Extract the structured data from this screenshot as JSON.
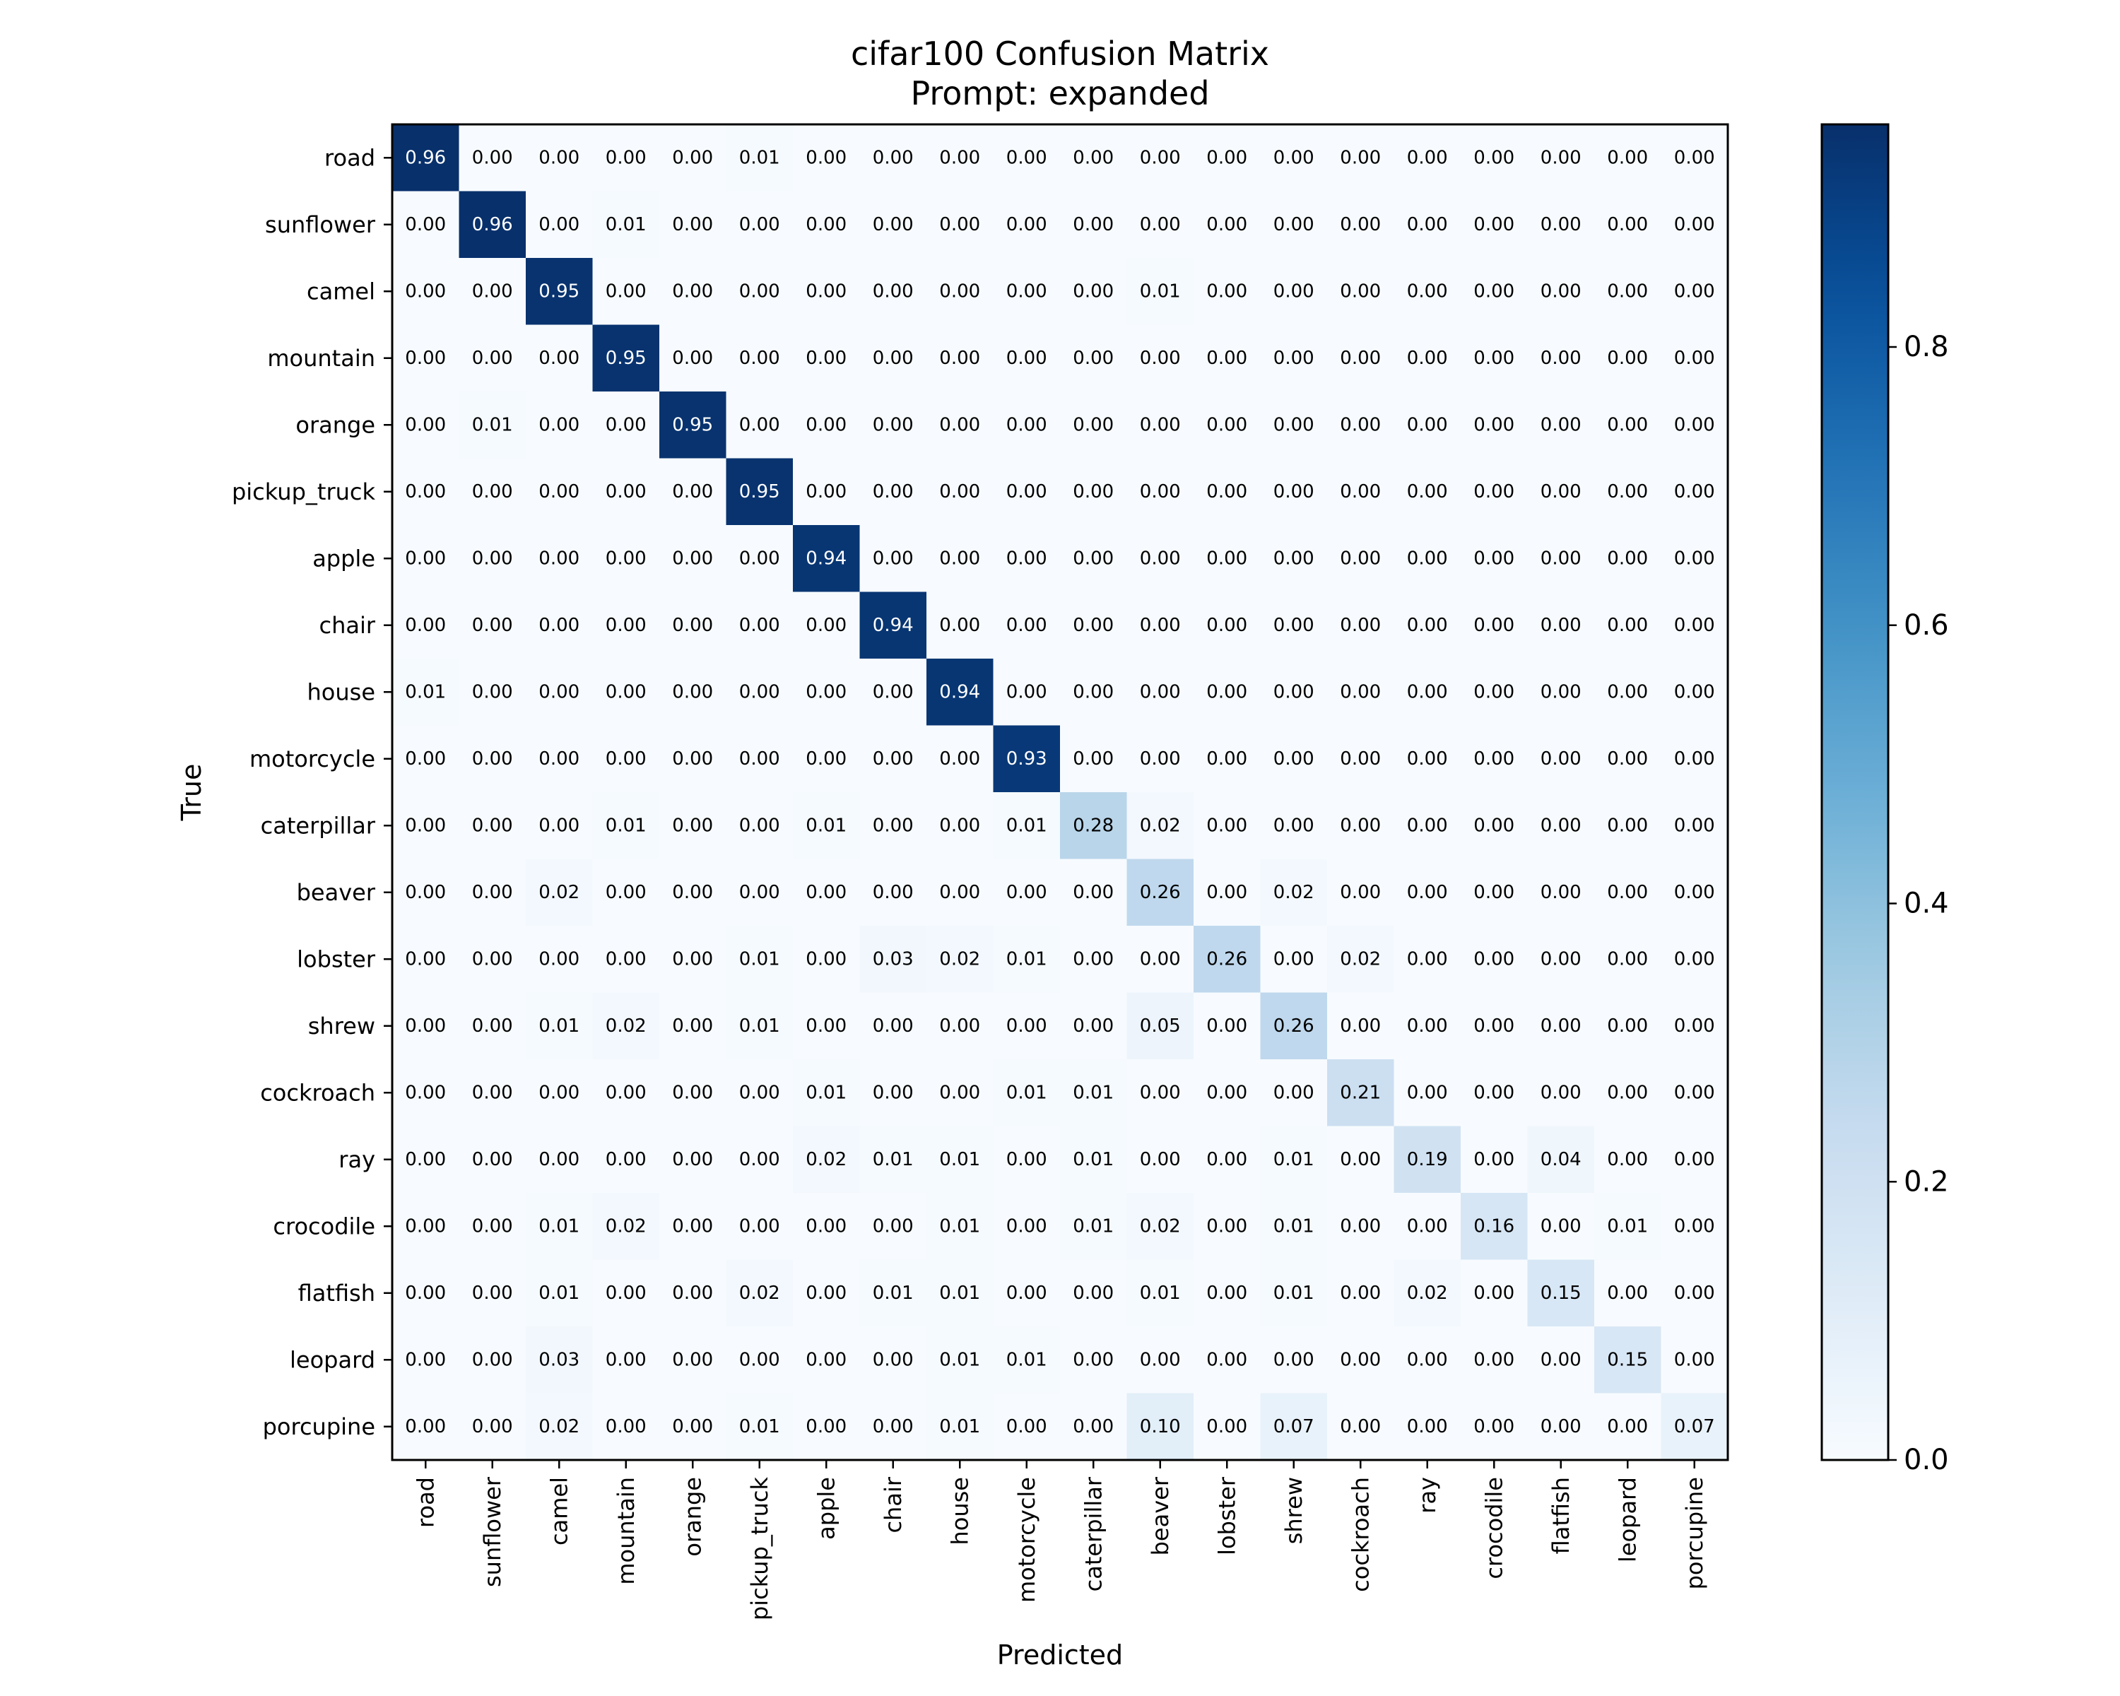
{
  "chart_data": {
    "type": "heatmap",
    "title": "cifar100 Confusion Matrix",
    "subtitle": "Prompt: expanded",
    "xlabel": "Predicted",
    "ylabel": "True",
    "labels": [
      "road",
      "sunflower",
      "camel",
      "mountain",
      "orange",
      "pickup_truck",
      "apple",
      "chair",
      "house",
      "motorcycle",
      "caterpillar",
      "beaver",
      "lobster",
      "shrew",
      "cockroach",
      "ray",
      "crocodile",
      "flatfish",
      "leopard",
      "porcupine"
    ],
    "matrix": [
      [
        0.96,
        0.0,
        0.0,
        0.0,
        0.0,
        0.01,
        0.0,
        0.0,
        0.0,
        0.0,
        0.0,
        0.0,
        0.0,
        0.0,
        0.0,
        0.0,
        0.0,
        0.0,
        0.0,
        0.0
      ],
      [
        0.0,
        0.96,
        0.0,
        0.01,
        0.0,
        0.0,
        0.0,
        0.0,
        0.0,
        0.0,
        0.0,
        0.0,
        0.0,
        0.0,
        0.0,
        0.0,
        0.0,
        0.0,
        0.0,
        0.0
      ],
      [
        0.0,
        0.0,
        0.95,
        0.0,
        0.0,
        0.0,
        0.0,
        0.0,
        0.0,
        0.0,
        0.0,
        0.01,
        0.0,
        0.0,
        0.0,
        0.0,
        0.0,
        0.0,
        0.0,
        0.0
      ],
      [
        0.0,
        0.0,
        0.0,
        0.95,
        0.0,
        0.0,
        0.0,
        0.0,
        0.0,
        0.0,
        0.0,
        0.0,
        0.0,
        0.0,
        0.0,
        0.0,
        0.0,
        0.0,
        0.0,
        0.0
      ],
      [
        0.0,
        0.01,
        0.0,
        0.0,
        0.95,
        0.0,
        0.0,
        0.0,
        0.0,
        0.0,
        0.0,
        0.0,
        0.0,
        0.0,
        0.0,
        0.0,
        0.0,
        0.0,
        0.0,
        0.0
      ],
      [
        0.0,
        0.0,
        0.0,
        0.0,
        0.0,
        0.95,
        0.0,
        0.0,
        0.0,
        0.0,
        0.0,
        0.0,
        0.0,
        0.0,
        0.0,
        0.0,
        0.0,
        0.0,
        0.0,
        0.0
      ],
      [
        0.0,
        0.0,
        0.0,
        0.0,
        0.0,
        0.0,
        0.94,
        0.0,
        0.0,
        0.0,
        0.0,
        0.0,
        0.0,
        0.0,
        0.0,
        0.0,
        0.0,
        0.0,
        0.0,
        0.0
      ],
      [
        0.0,
        0.0,
        0.0,
        0.0,
        0.0,
        0.0,
        0.0,
        0.94,
        0.0,
        0.0,
        0.0,
        0.0,
        0.0,
        0.0,
        0.0,
        0.0,
        0.0,
        0.0,
        0.0,
        0.0
      ],
      [
        0.01,
        0.0,
        0.0,
        0.0,
        0.0,
        0.0,
        0.0,
        0.0,
        0.94,
        0.0,
        0.0,
        0.0,
        0.0,
        0.0,
        0.0,
        0.0,
        0.0,
        0.0,
        0.0,
        0.0
      ],
      [
        0.0,
        0.0,
        0.0,
        0.0,
        0.0,
        0.0,
        0.0,
        0.0,
        0.0,
        0.93,
        0.0,
        0.0,
        0.0,
        0.0,
        0.0,
        0.0,
        0.0,
        0.0,
        0.0,
        0.0
      ],
      [
        0.0,
        0.0,
        0.0,
        0.01,
        0.0,
        0.0,
        0.01,
        0.0,
        0.0,
        0.01,
        0.28,
        0.02,
        0.0,
        0.0,
        0.0,
        0.0,
        0.0,
        0.0,
        0.0,
        0.0
      ],
      [
        0.0,
        0.0,
        0.02,
        0.0,
        0.0,
        0.0,
        0.0,
        0.0,
        0.0,
        0.0,
        0.0,
        0.26,
        0.0,
        0.02,
        0.0,
        0.0,
        0.0,
        0.0,
        0.0,
        0.0
      ],
      [
        0.0,
        0.0,
        0.0,
        0.0,
        0.0,
        0.01,
        0.0,
        0.03,
        0.02,
        0.01,
        0.0,
        0.0,
        0.26,
        0.0,
        0.02,
        0.0,
        0.0,
        0.0,
        0.0,
        0.0
      ],
      [
        0.0,
        0.0,
        0.01,
        0.02,
        0.0,
        0.01,
        0.0,
        0.0,
        0.0,
        0.0,
        0.0,
        0.05,
        0.0,
        0.26,
        0.0,
        0.0,
        0.0,
        0.0,
        0.0,
        0.0
      ],
      [
        0.0,
        0.0,
        0.0,
        0.0,
        0.0,
        0.0,
        0.01,
        0.0,
        0.0,
        0.01,
        0.01,
        0.0,
        0.0,
        0.0,
        0.21,
        0.0,
        0.0,
        0.0,
        0.0,
        0.0
      ],
      [
        0.0,
        0.0,
        0.0,
        0.0,
        0.0,
        0.0,
        0.02,
        0.01,
        0.01,
        0.0,
        0.01,
        0.0,
        0.0,
        0.01,
        0.0,
        0.19,
        0.0,
        0.04,
        0.0,
        0.0
      ],
      [
        0.0,
        0.0,
        0.01,
        0.02,
        0.0,
        0.0,
        0.0,
        0.0,
        0.01,
        0.0,
        0.01,
        0.02,
        0.0,
        0.01,
        0.0,
        0.0,
        0.16,
        0.0,
        0.01,
        0.0
      ],
      [
        0.0,
        0.0,
        0.01,
        0.0,
        0.0,
        0.02,
        0.0,
        0.01,
        0.01,
        0.0,
        0.0,
        0.01,
        0.0,
        0.01,
        0.0,
        0.02,
        0.0,
        0.15,
        0.0,
        0.0
      ],
      [
        0.0,
        0.0,
        0.03,
        0.0,
        0.0,
        0.0,
        0.0,
        0.0,
        0.01,
        0.01,
        0.0,
        0.0,
        0.0,
        0.0,
        0.0,
        0.0,
        0.0,
        0.0,
        0.15,
        0.0
      ],
      [
        0.0,
        0.0,
        0.02,
        0.0,
        0.0,
        0.01,
        0.0,
        0.0,
        0.01,
        0.0,
        0.0,
        0.1,
        0.0,
        0.07,
        0.0,
        0.0,
        0.0,
        0.0,
        0.0,
        0.07
      ]
    ],
    "colorbar": {
      "range": [
        0,
        0.96
      ],
      "ticks": [
        0.0,
        0.2,
        0.4,
        0.6,
        0.8
      ],
      "tick_labels": [
        "0.0",
        "0.2",
        "0.4",
        "0.6",
        "0.8"
      ],
      "colormap": "Blues"
    },
    "colors": {
      "low": "#f7fbff",
      "high": "#08306b",
      "text_light": "#ffffff",
      "text_dark": "#000000"
    }
  }
}
